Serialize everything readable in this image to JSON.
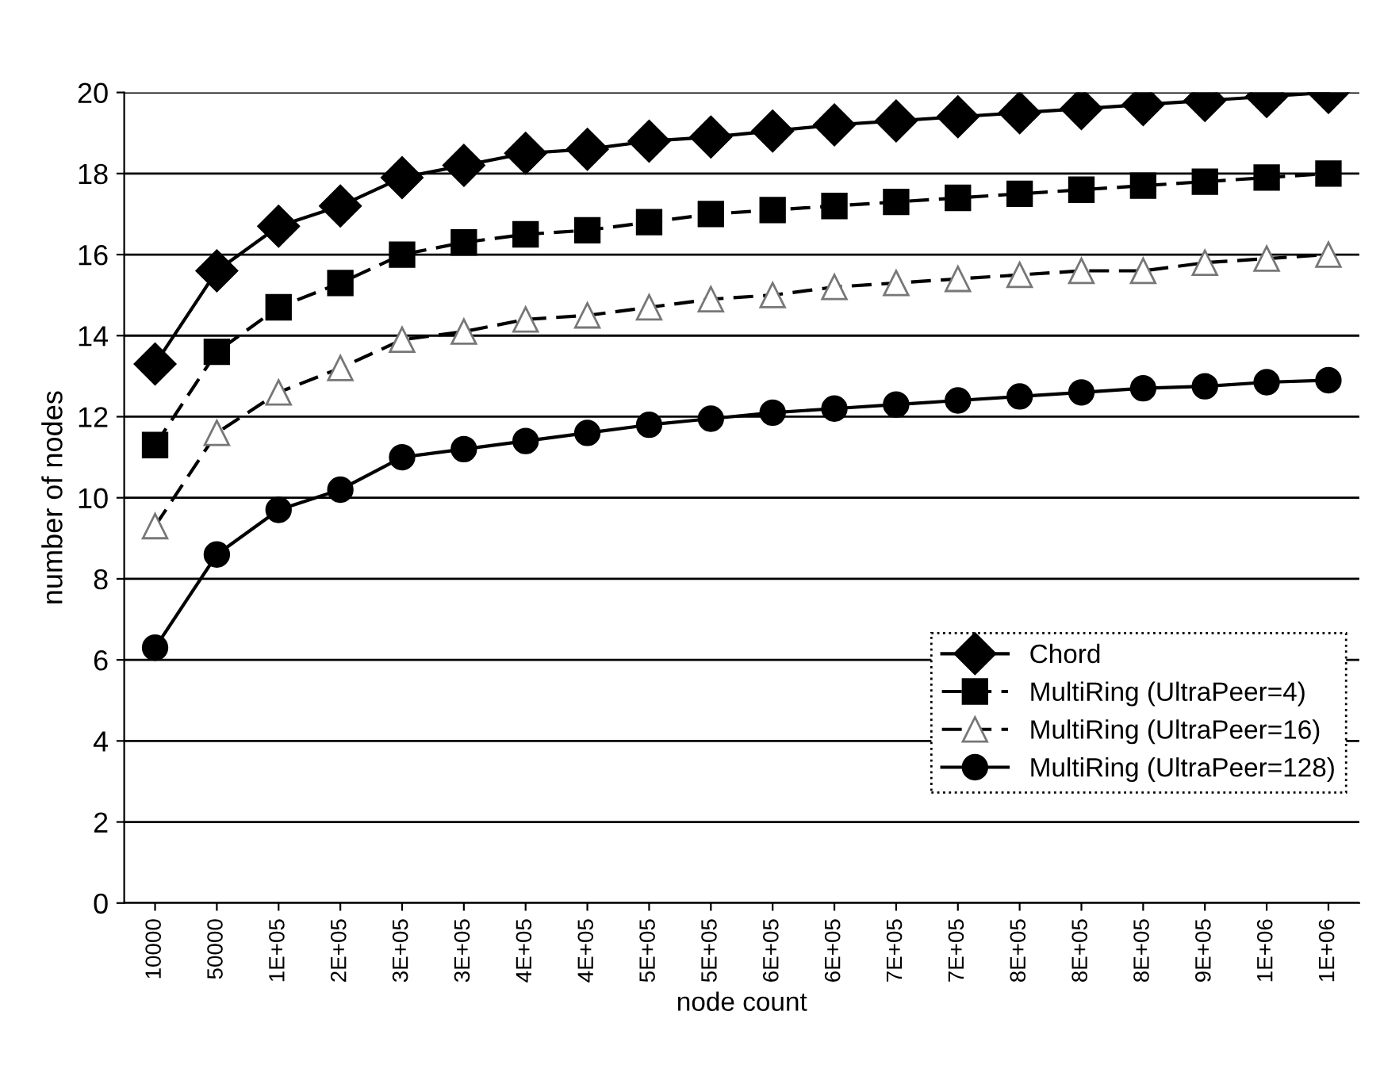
{
  "chart_data": {
    "type": "line",
    "xlabel": "node count",
    "ylabel": "number of nodes",
    "categories": [
      "10000",
      "50000",
      "1E+05",
      "2E+05",
      "3E+05",
      "3E+05",
      "4E+05",
      "4E+05",
      "5E+05",
      "5E+05",
      "6E+05",
      "6E+05",
      "7E+05",
      "7E+05",
      "8E+05",
      "8E+05",
      "8E+05",
      "9E+05",
      "1E+06",
      "1E+06"
    ],
    "series": [
      {
        "name": "Chord",
        "color": "#000000",
        "marker": "diamond",
        "line_style": "solid",
        "values": [
          13.3,
          15.6,
          16.7,
          17.2,
          17.9,
          18.2,
          18.5,
          18.6,
          18.8,
          18.9,
          19.05,
          19.2,
          19.3,
          19.4,
          19.5,
          19.6,
          19.7,
          19.8,
          19.9,
          20.0
        ]
      },
      {
        "name": "MultiRing (UltraPeer=4)",
        "color": "#000000",
        "marker": "square",
        "line_style": "dashed",
        "values": [
          11.3,
          13.6,
          14.7,
          15.3,
          16.0,
          16.3,
          16.5,
          16.6,
          16.8,
          17.0,
          17.1,
          17.2,
          17.3,
          17.4,
          17.5,
          17.6,
          17.7,
          17.8,
          17.9,
          18.0
        ]
      },
      {
        "name": "MultiRing (UltraPeer=16)",
        "color": "#000000",
        "marker": "triangle",
        "line_style": "dashed",
        "values": [
          9.3,
          11.6,
          12.6,
          13.2,
          13.9,
          14.1,
          14.4,
          14.5,
          14.7,
          14.9,
          15.0,
          15.2,
          15.3,
          15.4,
          15.5,
          15.6,
          15.6,
          15.8,
          15.9,
          16.0
        ]
      },
      {
        "name": "MultiRing (UltraPeer=128)",
        "color": "#000000",
        "marker": "circle",
        "line_style": "solid",
        "values": [
          6.3,
          8.6,
          9.7,
          10.2,
          11.0,
          11.2,
          11.4,
          11.6,
          11.8,
          11.95,
          12.1,
          12.2,
          12.3,
          12.4,
          12.5,
          12.6,
          12.7,
          12.75,
          12.85,
          12.9
        ]
      }
    ],
    "ylim": [
      0,
      20
    ],
    "yticks": [
      0,
      2,
      4,
      6,
      8,
      10,
      12,
      14,
      16,
      18,
      20
    ],
    "grid": "y",
    "legend": "bottom right"
  }
}
